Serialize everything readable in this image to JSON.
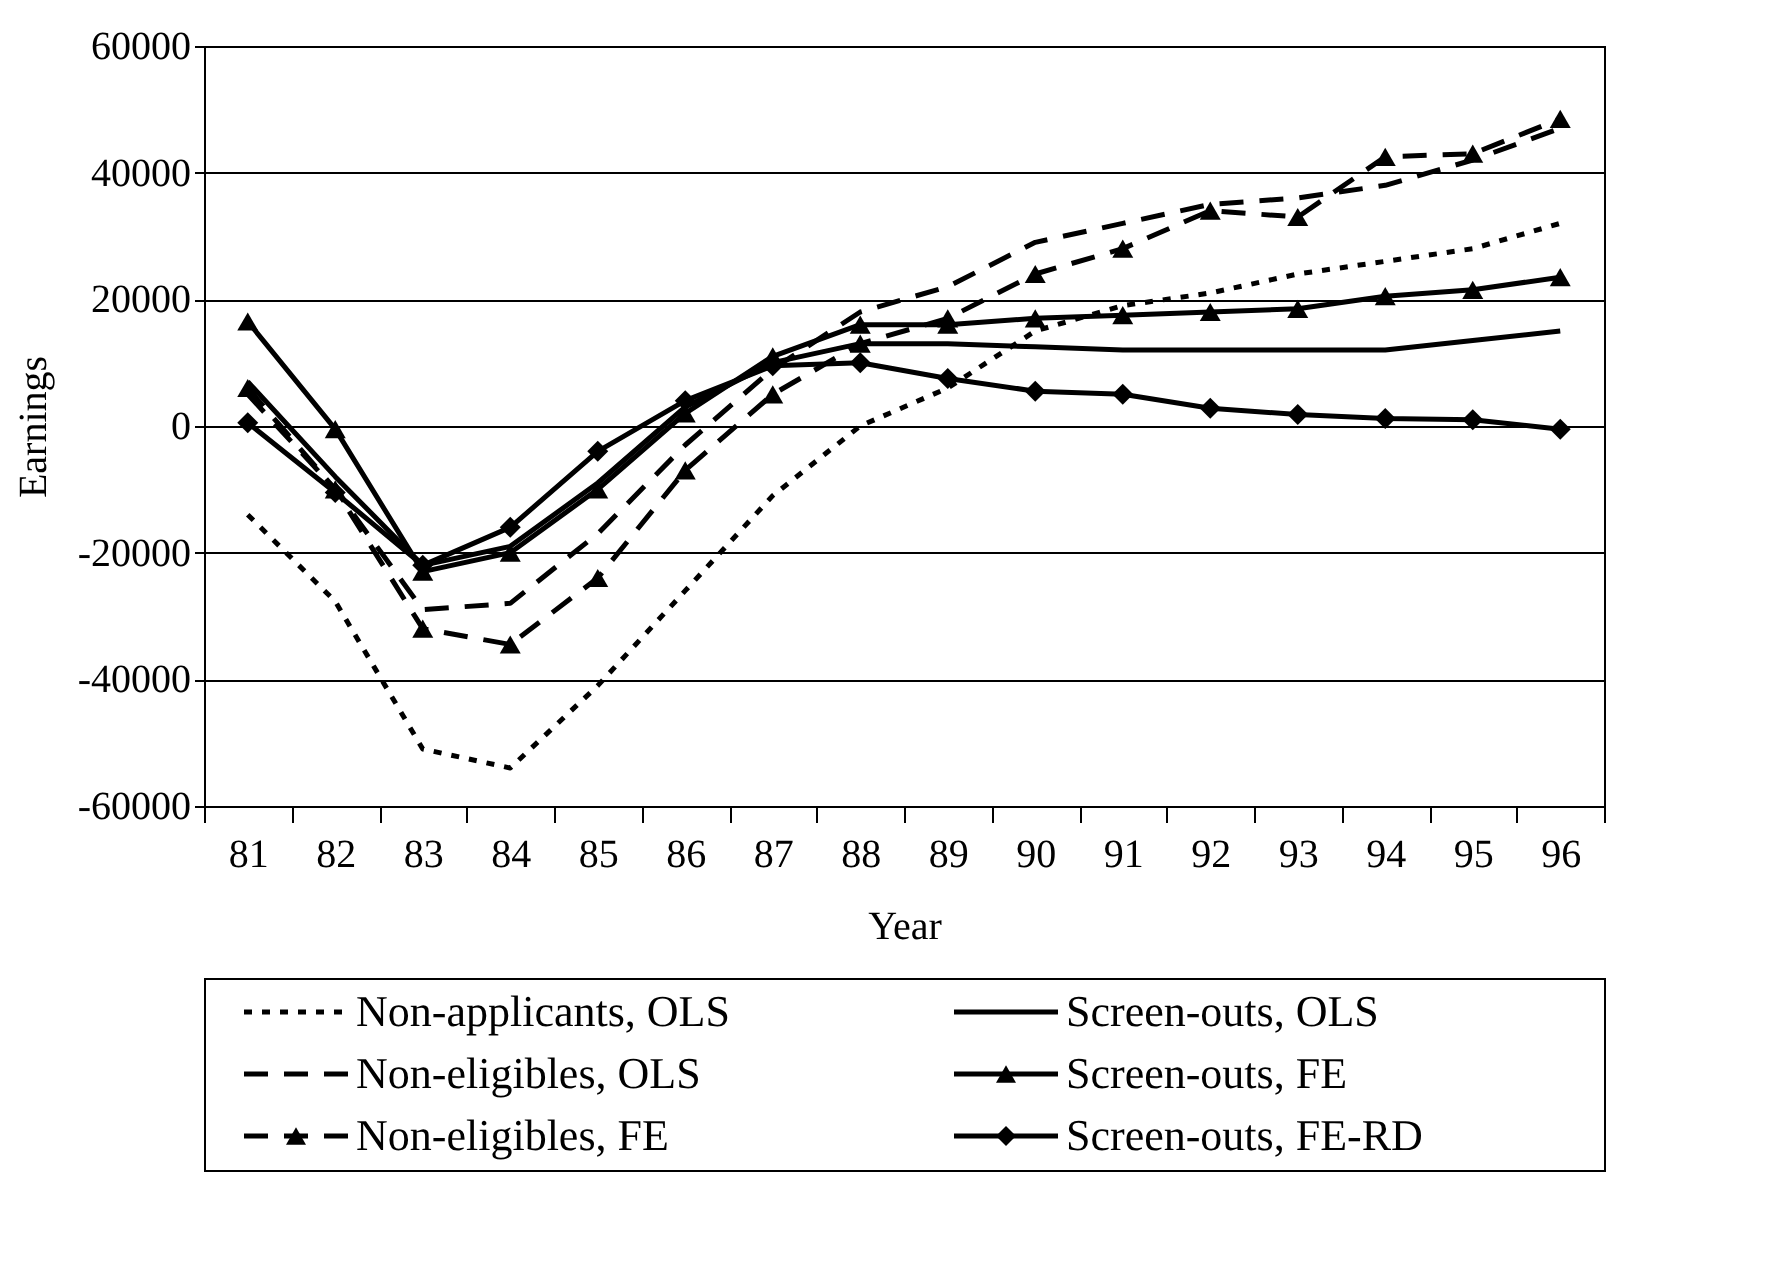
{
  "chart_data": {
    "type": "line",
    "xlabel": "Year",
    "ylabel": "Earnings",
    "categories": [
      "81",
      "82",
      "83",
      "84",
      "85",
      "86",
      "87",
      "88",
      "89",
      "90",
      "91",
      "92",
      "93",
      "94",
      "95",
      "96"
    ],
    "ylim": [
      -60000,
      60000
    ],
    "yticks": [
      -60000,
      -40000,
      -20000,
      0,
      20000,
      40000,
      60000
    ],
    "grid": "y",
    "legend": "bottom",
    "series": [
      {
        "name": "Non-applicants, OLS",
        "color": "#000000",
        "line_style": "dotted",
        "marker": "none",
        "values": [
          -14000,
          -27700,
          -51000,
          -54000,
          -41000,
          -26000,
          -11000,
          0,
          6000,
          15000,
          19000,
          21000,
          24000,
          26000,
          28000,
          32000
        ]
      },
      {
        "name": "Non-eligibles, OLS",
        "color": "#000000",
        "line_style": "dashed",
        "marker": "none",
        "values": [
          5000,
          -10000,
          -29000,
          -28000,
          -17000,
          -3000,
          9000,
          18000,
          22000,
          29000,
          32000,
          35000,
          36000,
          38000,
          42000,
          47000
        ]
      },
      {
        "name": "Non-eligibles, FE",
        "color": "#000000",
        "line_style": "dashed",
        "marker": "triangle",
        "values": [
          6000,
          -10000,
          -32000,
          -34500,
          -24000,
          -7000,
          5000,
          13000,
          17000,
          24000,
          28000,
          34000,
          33000,
          42500,
          43000,
          48500
        ]
      },
      {
        "name": "Screen-outs, OLS",
        "color": "#000000",
        "line_style": "solid",
        "marker": "none",
        "values": [
          7000,
          -8000,
          -22000,
          -19000,
          -9000,
          3000,
          10000,
          13000,
          13000,
          12500,
          12000,
          12000,
          12000,
          12000,
          13500,
          15000
        ]
      },
      {
        "name": "Screen-outs, FE",
        "color": "#000000",
        "line_style": "solid",
        "marker": "triangle",
        "values": [
          16500,
          -500,
          -23000,
          -20000,
          -10000,
          2000,
          11000,
          16000,
          16000,
          17000,
          17500,
          18000,
          18500,
          20500,
          21500,
          23500
        ]
      },
      {
        "name": "Screen-outs, FE-RD",
        "color": "#000000",
        "line_style": "solid",
        "marker": "diamond",
        "values": [
          500,
          -10500,
          -22000,
          -16000,
          -4000,
          4000,
          9500,
          10000,
          7500,
          5500,
          5000,
          2800,
          1800,
          1200,
          1000,
          -500
        ]
      }
    ]
  }
}
